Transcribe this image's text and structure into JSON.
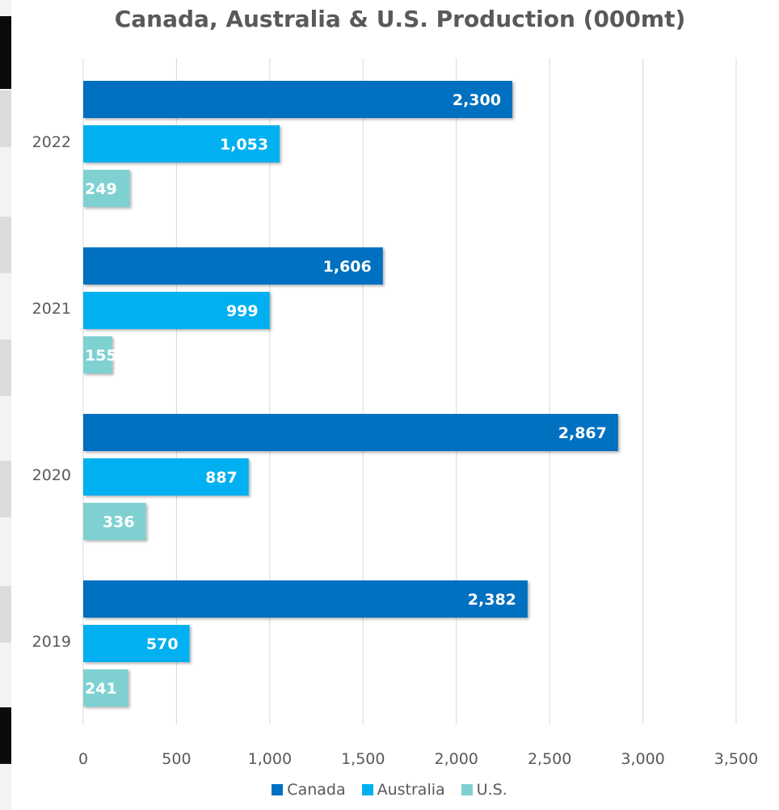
{
  "chart_data": {
    "type": "bar",
    "orientation": "horizontal",
    "title": "Canada, Australia & U.S. Production (000mt)",
    "categories": [
      "2022",
      "2021",
      "2020",
      "2019"
    ],
    "series": [
      {
        "name": "Canada",
        "color": "#0070C0",
        "values": [
          2300,
          1606,
          2867,
          2382
        ],
        "labels": [
          "2,300",
          "1,606",
          "2,867",
          "2,382"
        ]
      },
      {
        "name": "Australia",
        "color": "#00B0F0",
        "values": [
          1053,
          999,
          887,
          570
        ],
        "labels": [
          "1,053",
          "999",
          "887",
          "570"
        ]
      },
      {
        "name": "U.S.",
        "color": "#7FD1D1",
        "values": [
          249,
          155,
          336,
          241
        ],
        "labels": [
          "249",
          "155",
          "336",
          "241"
        ]
      }
    ],
    "xlim": [
      0,
      3500
    ],
    "x_ticks": [
      "0",
      "500",
      "1,000",
      "1,500",
      "2,000",
      "2,500",
      "3,000",
      "3,500"
    ],
    "grid": true,
    "legend_position": "bottom"
  }
}
